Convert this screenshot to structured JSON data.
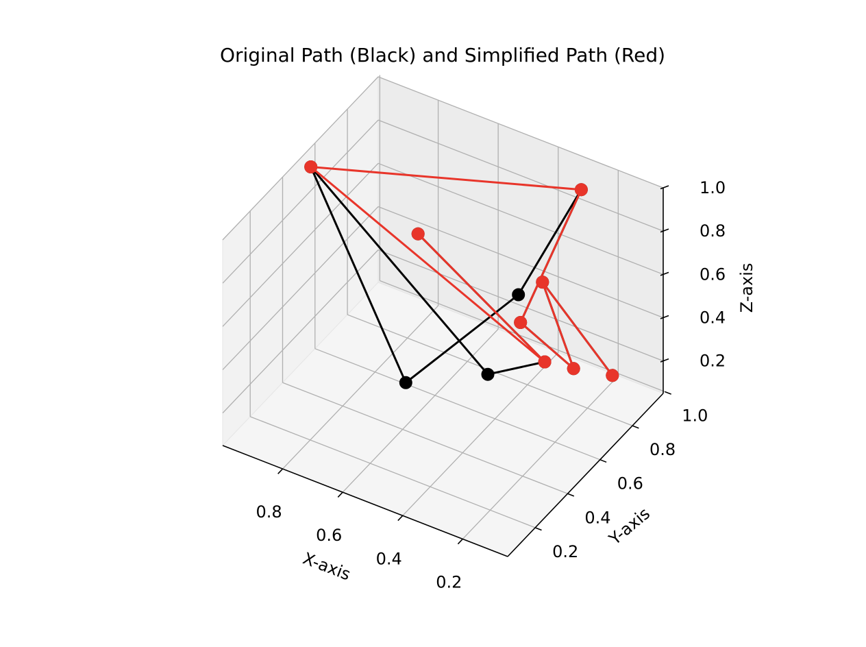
{
  "chart_data": {
    "type": "line3d",
    "title": "Original Path (Black) and Simplified Path (Red)",
    "xlabel": "X-axis",
    "ylabel": "Y-axis",
    "zlabel": "Z-axis",
    "xlim": [
      0.05,
      1.0
    ],
    "ylim": [
      0.03,
      0.99
    ],
    "zlim": [
      0.05,
      1.0
    ],
    "xticks": [
      "0.8",
      "0.6",
      "0.4",
      "0.2"
    ],
    "xtick_values": [
      0.8,
      0.6,
      0.4,
      0.2
    ],
    "yticks": [
      "0.2",
      "0.4",
      "0.6",
      "0.8",
      "1.0"
    ],
    "ytick_values": [
      0.2,
      0.4,
      0.6,
      0.8,
      1.0
    ],
    "zticks": [
      "0.2",
      "0.4",
      "0.6",
      "0.8",
      "1.0"
    ],
    "ztick_values": [
      0.2,
      0.4,
      0.6,
      0.8,
      1.0
    ],
    "grid": true,
    "view": {
      "elev": 30,
      "azim": -60
    },
    "series": [
      {
        "color": "#000000",
        "points": [
          [
            0.16,
            0.88,
            0.16
          ],
          [
            0.15,
            0.43,
            0.95
          ],
          [
            0.23,
            0.77,
            0.24
          ],
          [
            0.11,
            0.22,
            0.95
          ],
          [
            0.28,
            0.91,
            0.93
          ],
          [
            0.43,
            0.8,
            0.45
          ],
          [
            0.53,
            0.29,
            0.39
          ],
          [
            0.96,
            0.5,
            0.99
          ],
          [
            0.37,
            0.5,
            0.35
          ],
          [
            0.11,
            0.37,
            0.65
          ],
          [
            0.84,
            0.94,
            0.4
          ]
        ]
      },
      {
        "color": "#e8352a",
        "points": [
          [
            0.16,
            0.88,
            0.16
          ],
          [
            0.15,
            0.43,
            0.95
          ],
          [
            0.23,
            0.77,
            0.24
          ],
          [
            0.11,
            0.22,
            0.95
          ],
          [
            0.28,
            0.91,
            0.93
          ],
          [
            0.96,
            0.5,
            0.99
          ],
          [
            0.11,
            0.37,
            0.65
          ],
          [
            0.84,
            0.94,
            0.4
          ]
        ]
      }
    ]
  }
}
